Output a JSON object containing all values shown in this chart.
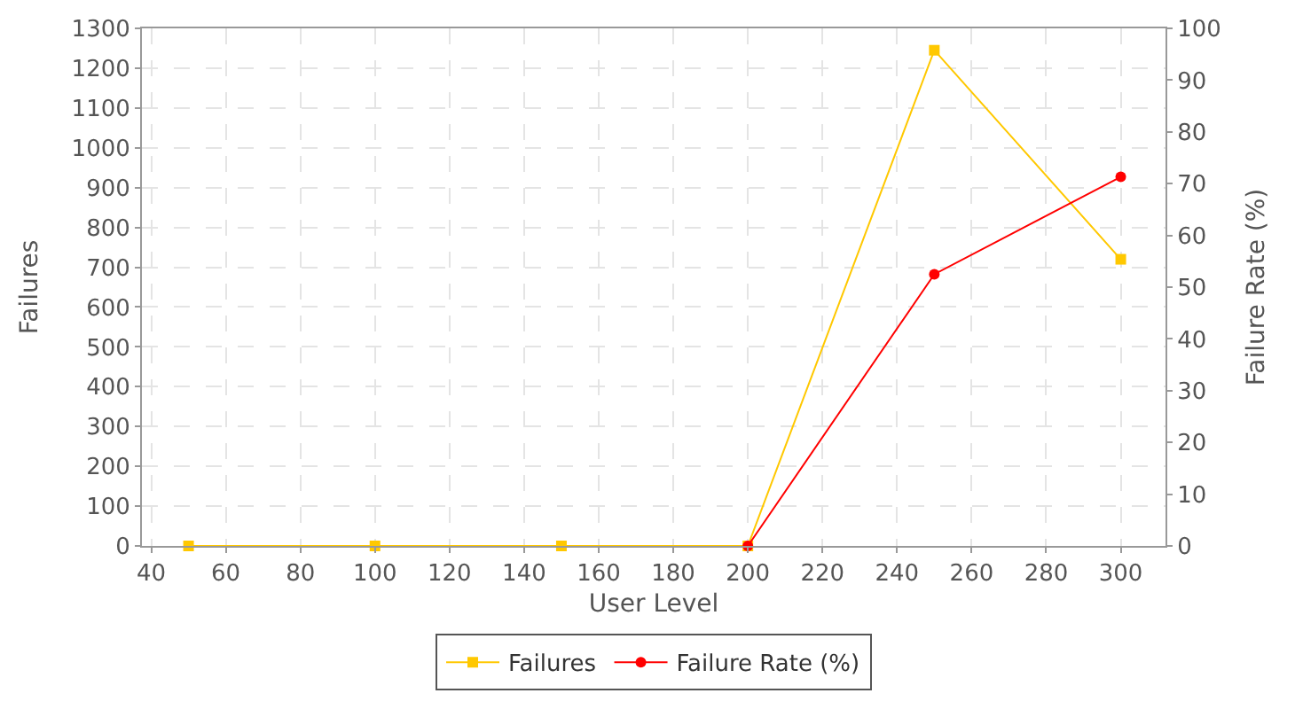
{
  "chart_data": {
    "type": "line",
    "xlabel": "User Level",
    "ylabel": "Failures",
    "y2label": "Failure Rate (%)",
    "x": [
      50,
      100,
      150,
      200,
      250,
      300
    ],
    "series": [
      {
        "name": "Failures",
        "color": "#ffc800",
        "values": [
          0,
          0,
          0,
          0,
          1245,
          720
        ],
        "marker": "square"
      },
      {
        "name": "Failure Rate (%)",
        "color": "#ff0000",
        "values": [
          null,
          null,
          null,
          0,
          52.5,
          71.3
        ],
        "axis": "y2",
        "marker": "circle"
      }
    ],
    "xlim": [
      37.5,
      312
    ],
    "xticks": [
      40,
      60,
      80,
      100,
      120,
      140,
      160,
      180,
      200,
      220,
      240,
      260,
      280,
      300
    ],
    "ylim": [
      0,
      1300
    ],
    "yticks": [
      0,
      100,
      200,
      300,
      400,
      500,
      600,
      700,
      800,
      900,
      1000,
      1100,
      1200,
      1300
    ],
    "y2lim": [
      0,
      100
    ],
    "y2ticks": [
      0,
      10,
      20,
      30,
      40,
      50,
      60,
      70,
      80,
      90,
      100
    ],
    "grid": true,
    "legend": "bottom",
    "line_style": "solid"
  }
}
